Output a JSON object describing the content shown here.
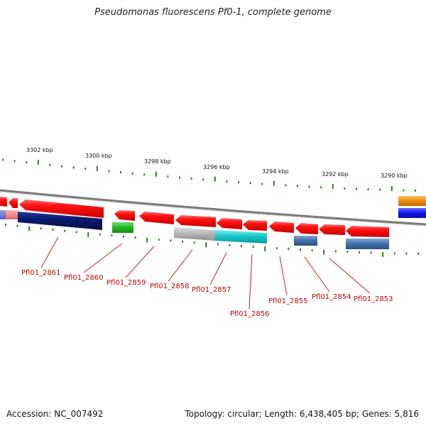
{
  "title": "Pseudomonas fluorescens Pf0-1, complete genome",
  "footer": {
    "accession": "Accession: NC_007492",
    "stats": "Topology: circular; Length: 6,438,405 bp; Genes: 5,816"
  },
  "scale_labels": [
    "3302 kbp",
    "3300 kbp",
    "3298 kbp",
    "3296 kbp",
    "3294 kbp",
    "3292 kbp",
    "3290 kbp"
  ],
  "genes": [
    "Pfl01_2861",
    "Pfl01_2860",
    "Pfl01_2859",
    "Pfl01_2858",
    "Pfl01_2857",
    "Pfl01_2856",
    "Pfl01_2855",
    "Pfl01_2854",
    "Pfl01_2853"
  ],
  "colors": {
    "gene_red": "#ee1111",
    "gene_label": "#c00000",
    "tick_green": "#2e7d1e",
    "backbone": "#888888",
    "navy": "#0a1a6e",
    "green_feature": "#2fbf2f",
    "gray_feature": "#b8b8b8",
    "cyan_feature": "#18c8c8",
    "steel_feature": "#3f6fa8",
    "orange_feature": "#f08c10",
    "blue_feature": "#1414ee"
  }
}
